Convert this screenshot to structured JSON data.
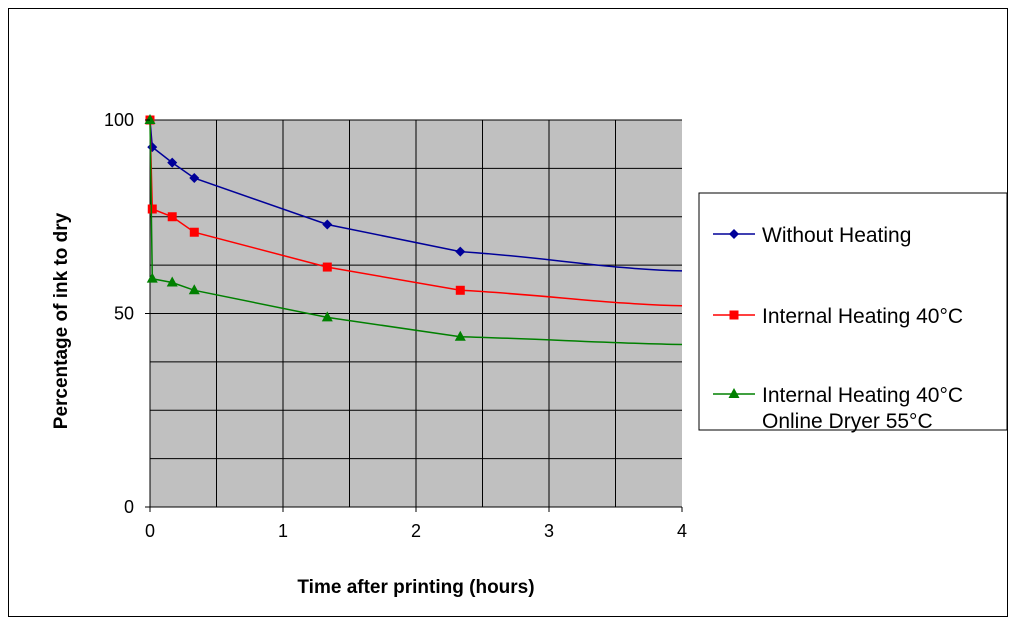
{
  "chart_data": {
    "type": "line",
    "title": "",
    "xlabel": "Time after printing (hours)",
    "ylabel": "Percentage of ink to dry",
    "xlim": [
      0,
      4
    ],
    "ylim": [
      0,
      100
    ],
    "x_ticks": [
      "0",
      "1",
      "2",
      "3",
      "4"
    ],
    "y_ticks": [
      "0",
      "50",
      "100"
    ],
    "grid": true,
    "legend_position": "right",
    "series": [
      {
        "name": "Without Heating",
        "color": "#000099",
        "marker": "diamond",
        "points": [
          [
            0,
            100
          ],
          [
            0.017,
            93
          ],
          [
            0.167,
            89
          ],
          [
            0.333,
            85
          ],
          [
            1.333,
            73
          ],
          [
            2.333,
            66
          ]
        ],
        "trend_end": [
          4,
          61
        ]
      },
      {
        "name": "Internal Heating 40°C",
        "color": "#ff0000",
        "marker": "square",
        "points": [
          [
            0,
            100
          ],
          [
            0.017,
            77
          ],
          [
            0.167,
            75
          ],
          [
            0.333,
            71
          ],
          [
            1.333,
            62
          ],
          [
            2.333,
            56
          ]
        ],
        "trend_end": [
          4,
          52
        ]
      },
      {
        "name_lines": [
          "Internal Heating 40°C",
          "Online Dryer 55°C"
        ],
        "color": "#008000",
        "marker": "triangle",
        "points": [
          [
            0,
            100
          ],
          [
            0.017,
            59
          ],
          [
            0.167,
            58
          ],
          [
            0.333,
            56
          ],
          [
            1.333,
            49
          ],
          [
            2.333,
            44
          ]
        ],
        "trend_end": [
          4,
          42
        ]
      }
    ]
  }
}
